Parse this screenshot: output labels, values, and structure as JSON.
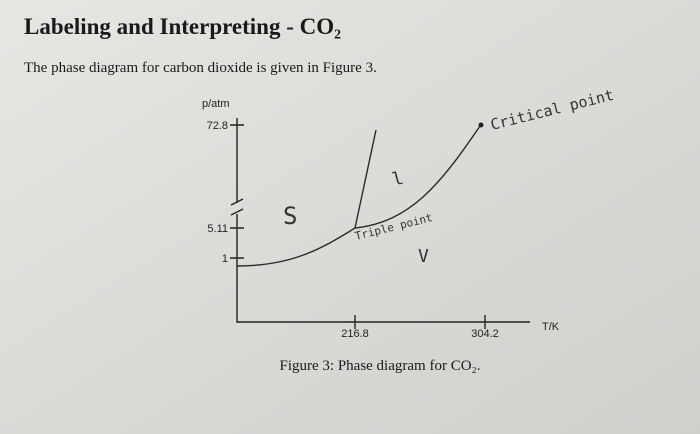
{
  "header": {
    "title": "Labeling and Interpreting - CO₂"
  },
  "intro": "The phase diagram for carbon dioxide is given in Figure 3.",
  "figure": {
    "y_axis_label": "p/atm",
    "x_axis_label": "T/K",
    "y_ticks": [
      "72.8",
      "5.11",
      "1"
    ],
    "x_ticks": [
      "216.8",
      "304.2"
    ],
    "annotations": {
      "critical": "Critical point",
      "solid": "S",
      "triple": "Triple point",
      "vapor": "V",
      "liquid": "l"
    },
    "caption": "Figure 3: Phase diagram for CO₂."
  }
}
